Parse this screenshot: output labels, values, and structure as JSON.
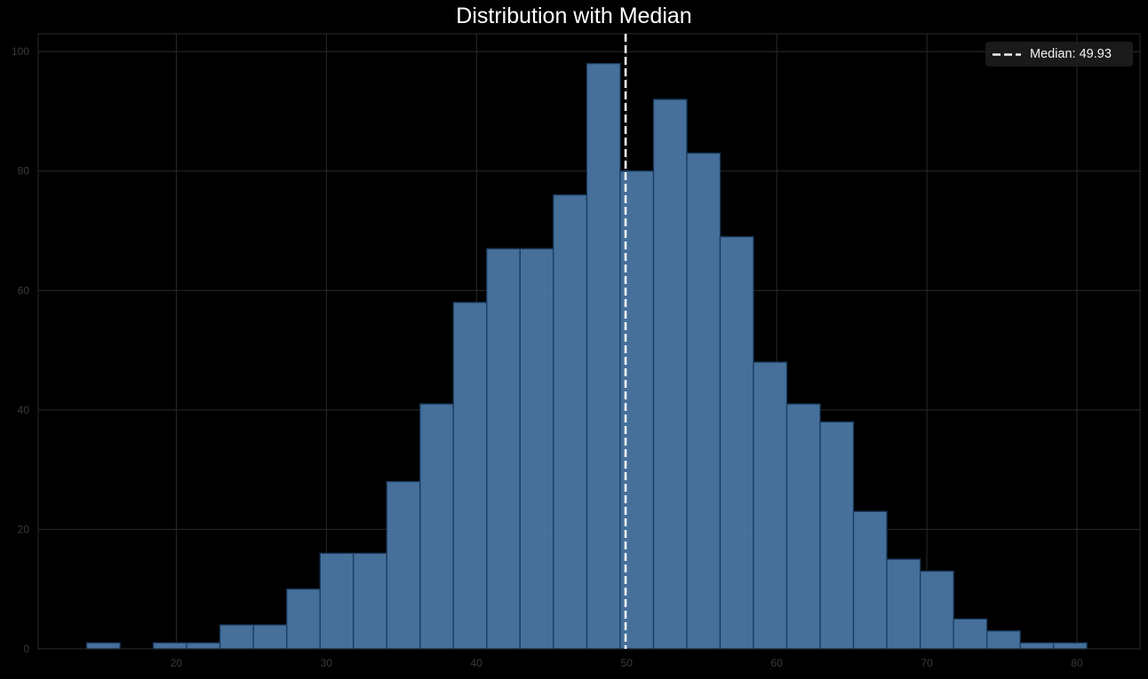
{
  "figure": {
    "background": "#000000",
    "title": "Distribution with Median"
  },
  "legend": {
    "label": "Median: 49.93",
    "line_style": "dashed",
    "line_color": "#ffffff",
    "background": "#1c1c1c",
    "position": "upper right"
  },
  "colors": {
    "bar_fill": "#4a76a2",
    "bar_edge": "#1a3a5e",
    "grid": "#2a2a2a",
    "axis_frame": "#2a2a2a",
    "tick_label": "#3a3a3a",
    "median_line": "#ffffff"
  },
  "chart_data": {
    "type": "bar",
    "subtype": "histogram",
    "title": "Distribution with Median",
    "xlabel": "",
    "ylabel": "",
    "xlim": [
      10.8,
      84.2
    ],
    "ylim": [
      0,
      103
    ],
    "x_ticks": [
      20,
      30,
      40,
      50,
      60,
      70,
      80
    ],
    "y_ticks": [
      0,
      20,
      40,
      60,
      80,
      100
    ],
    "grid": true,
    "legend_position": "upper right",
    "bin_start": 14.03,
    "bin_width": 2.221,
    "bin_count": 30,
    "bin_edges": [
      14.03,
      16.25,
      18.47,
      20.69,
      22.91,
      25.14,
      27.36,
      29.58,
      31.8,
      34.02,
      36.24,
      38.46,
      40.68,
      42.9,
      45.12,
      47.35,
      49.57,
      51.79,
      54.01,
      56.23,
      58.45,
      60.67,
      62.89,
      65.11,
      67.33,
      69.56,
      71.78,
      74.0,
      76.22,
      78.44,
      80.66
    ],
    "counts": [
      1,
      0,
      1,
      1,
      4,
      4,
      10,
      16,
      16,
      28,
      41,
      58,
      67,
      67,
      76,
      98,
      80,
      92,
      83,
      69,
      48,
      41,
      38,
      23,
      15,
      13,
      5,
      3,
      1,
      1
    ],
    "total": 1000,
    "annotations": [
      {
        "type": "vline",
        "x": 49.93,
        "style": "dashed",
        "color": "#ffffff",
        "label": "Median: 49.93"
      }
    ]
  }
}
